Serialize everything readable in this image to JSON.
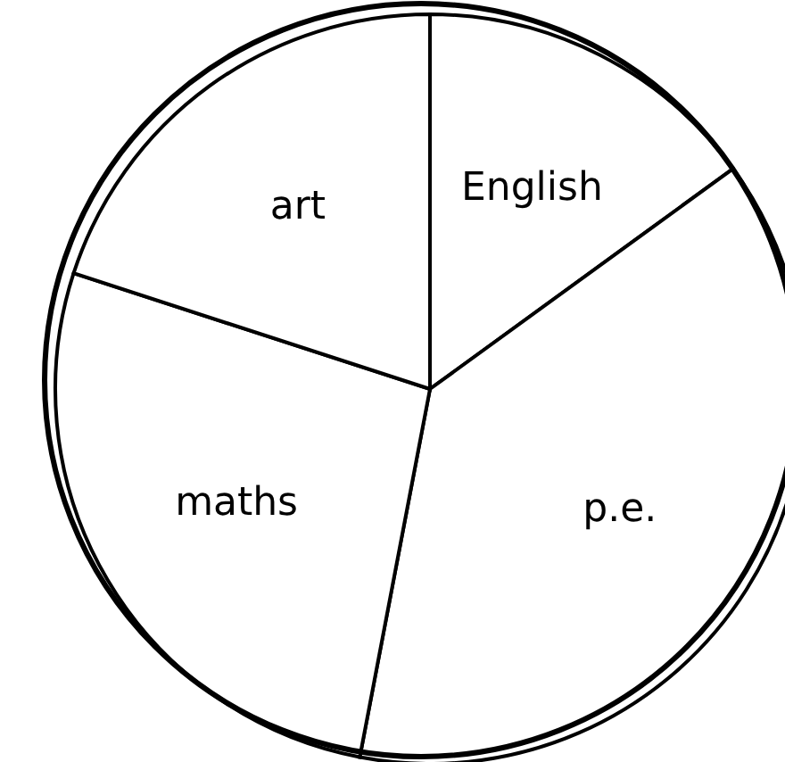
{
  "chart_data": {
    "type": "pie",
    "categories": [
      "English",
      "p.e.",
      "maths",
      "art"
    ],
    "values": [
      15,
      38,
      27,
      20
    ],
    "colors": [
      "#ffffff",
      "#ffffff",
      "#ffffff",
      "#ffffff"
    ],
    "legend": false
  }
}
